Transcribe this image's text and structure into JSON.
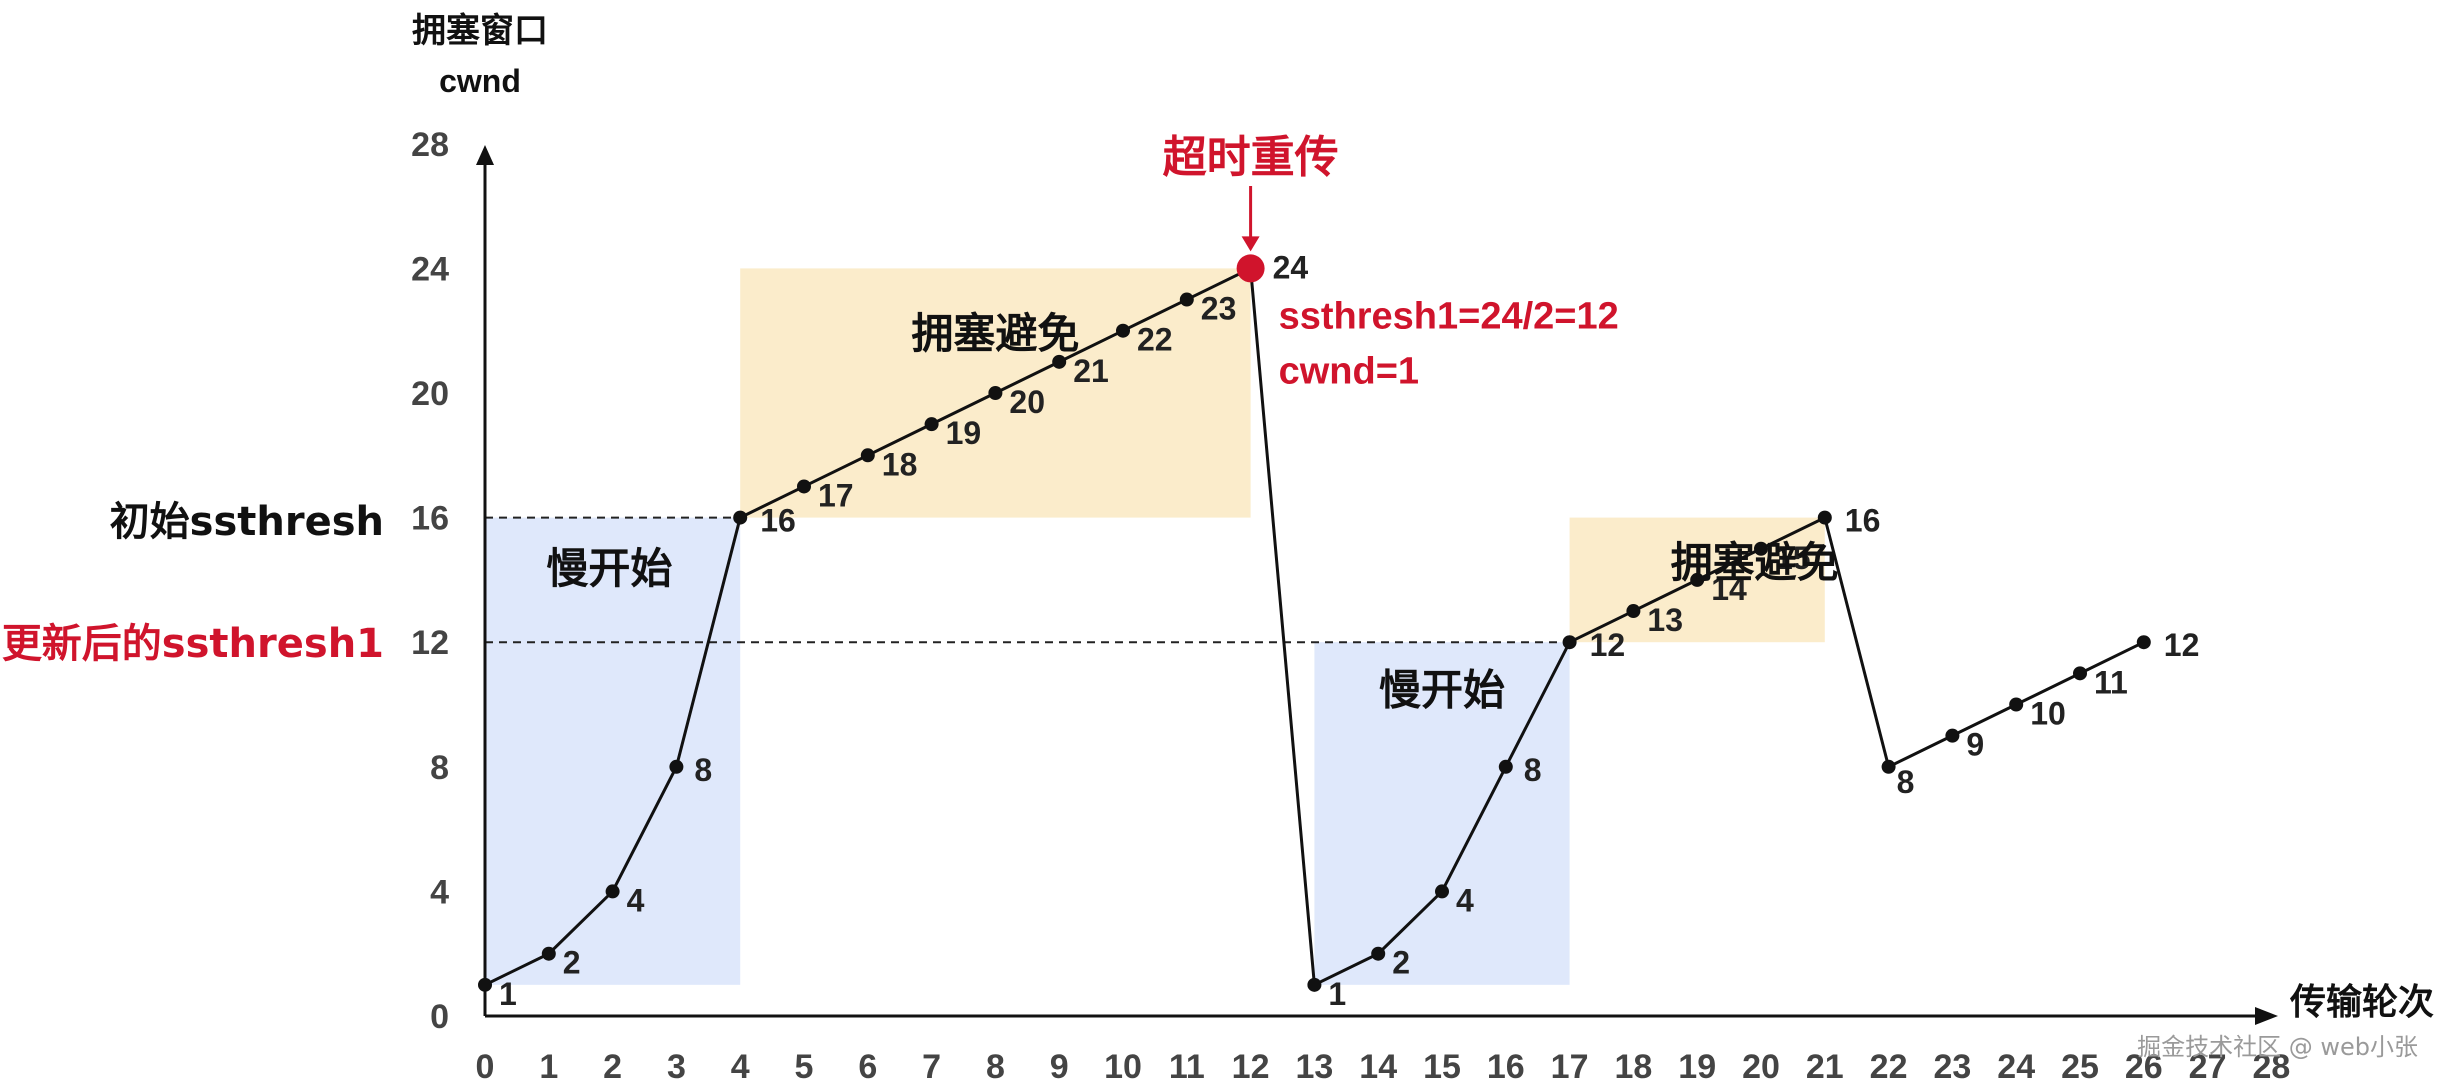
{
  "colors": {
    "slow_start_fill": "#dfe8fb",
    "congestion_avoidance_fill": "#fbeccb",
    "line": "#111111",
    "accent_red": "#d0142c",
    "axis": "#111111"
  },
  "labels": {
    "y_title_1": "拥塞窗口",
    "y_title_2": "cwnd",
    "x_title": "传输轮次",
    "initial_ssthresh": "初始ssthresh",
    "updated_ssthresh": "更新后的ssthresh1",
    "timeout": "超时重传",
    "ssthresh_formula": "ssthresh1=24/2=12",
    "cwnd_reset": "cwnd=1",
    "slow_start_1": "慢开始",
    "congestion_avoid_1": "拥塞避免",
    "slow_start_2": "慢开始",
    "congestion_avoid_2": "拥塞避免",
    "watermark": "掘金技术社区 @ web小张"
  },
  "chart_data": {
    "type": "line",
    "xlabel": "传输轮次",
    "ylabel": "拥塞窗口 cwnd",
    "xlim": [
      0,
      28
    ],
    "ylim": [
      0,
      28
    ],
    "x_ticks": [
      0,
      1,
      2,
      3,
      4,
      5,
      6,
      7,
      8,
      9,
      10,
      11,
      12,
      13,
      14,
      15,
      16,
      17,
      18,
      19,
      20,
      21,
      22,
      23,
      24,
      25,
      26,
      27,
      28
    ],
    "y_ticks": [
      0,
      4,
      8,
      12,
      16,
      20,
      24,
      28
    ],
    "series": [
      {
        "x": [
          0,
          1,
          2,
          3,
          4,
          5,
          6,
          7,
          8,
          9,
          10,
          11,
          12,
          13,
          14,
          15,
          16,
          17,
          18,
          19,
          20,
          21,
          22,
          23,
          24,
          25,
          26
        ],
        "values": [
          1,
          2,
          4,
          8,
          16,
          17,
          18,
          19,
          20,
          21,
          22,
          23,
          24,
          1,
          2,
          4,
          8,
          12,
          13,
          14,
          15,
          16,
          8,
          9,
          10,
          11,
          12
        ]
      }
    ],
    "thresholds": [
      {
        "label": "初始ssthresh",
        "value": 16
      },
      {
        "label": "更新后的ssthresh1",
        "value": 12
      }
    ],
    "regions": [
      {
        "label": "慢开始",
        "x_start": 0,
        "x_end": 4,
        "y_start": 1,
        "y_end": 16,
        "kind": "slow_start"
      },
      {
        "label": "拥塞避免",
        "x_start": 4,
        "x_end": 12,
        "y_start": 16,
        "y_end": 24,
        "kind": "congestion_avoidance"
      },
      {
        "label": "慢开始",
        "x_start": 13,
        "x_end": 17,
        "y_start": 1,
        "y_end": 12,
        "kind": "slow_start"
      },
      {
        "label": "拥塞避免",
        "x_start": 17,
        "x_end": 21,
        "y_start": 12,
        "y_end": 16,
        "kind": "congestion_avoidance"
      }
    ],
    "annotations": [
      {
        "text": "超时重传",
        "x": 12,
        "y": 24
      },
      {
        "text": "ssthresh1=24/2=12",
        "x": 12,
        "y": 24
      },
      {
        "text": "cwnd=1",
        "x": 12,
        "y": 24
      }
    ],
    "highlight_point": {
      "x": 12,
      "y": 24
    }
  }
}
